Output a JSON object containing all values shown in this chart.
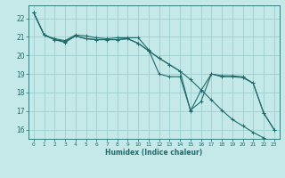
{
  "xlabel": "Humidex (Indice chaleur)",
  "bg_color": "#c5e8e8",
  "grid_color": "#9ecece",
  "line_color": "#1f6b6b",
  "x": [
    0,
    1,
    2,
    3,
    4,
    5,
    6,
    7,
    8,
    9,
    10,
    11,
    12,
    13,
    14,
    15,
    16,
    17,
    18,
    19,
    20,
    21,
    22,
    23
  ],
  "line1": [
    22.3,
    21.1,
    20.85,
    20.7,
    21.05,
    20.9,
    20.85,
    20.85,
    20.85,
    20.9,
    20.65,
    20.25,
    19.85,
    19.5,
    19.15,
    18.7,
    18.15,
    17.6,
    17.05,
    16.55,
    16.2,
    15.85,
    15.55,
    15.25
  ],
  "line2": [
    22.3,
    21.1,
    20.9,
    20.8,
    21.1,
    21.05,
    20.95,
    20.9,
    20.95,
    20.95,
    20.95,
    20.3,
    19.0,
    18.85,
    18.85,
    17.05,
    17.5,
    19.0,
    18.9,
    18.9,
    18.85,
    18.5,
    16.9,
    16.0
  ],
  "line3": [
    22.3,
    21.1,
    20.85,
    20.75,
    21.05,
    20.9,
    20.85,
    20.85,
    20.85,
    20.9,
    20.65,
    20.25,
    19.85,
    19.5,
    19.15,
    17.0,
    18.1,
    19.0,
    18.85,
    18.85,
    18.8,
    18.5,
    16.9,
    16.0
  ],
  "ylim": [
    15.5,
    22.7
  ],
  "yticks": [
    16,
    17,
    18,
    19,
    20,
    21,
    22
  ],
  "xticks": [
    0,
    1,
    2,
    3,
    4,
    5,
    6,
    7,
    8,
    9,
    10,
    11,
    12,
    13,
    14,
    15,
    16,
    17,
    18,
    19,
    20,
    21,
    22,
    23
  ],
  "xlabel_fontsize": 5.5,
  "ytick_fontsize": 5.5,
  "xtick_fontsize": 4.2
}
